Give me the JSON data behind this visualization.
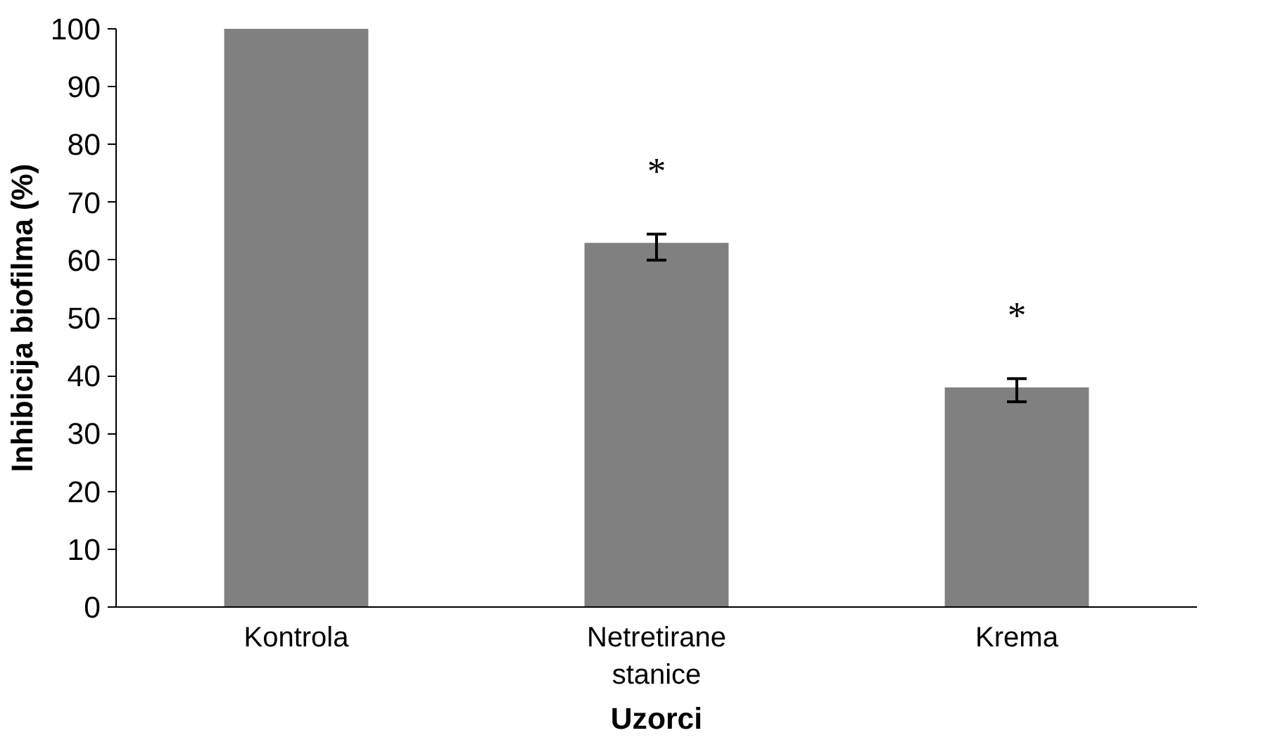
{
  "chart_data": {
    "type": "bar",
    "xlabel": "Uzorci",
    "ylabel": "Inhibicija biofilma (%)",
    "categories": [
      "Kontrola",
      "Netretirane\nstanice",
      "Krema"
    ],
    "values": [
      100,
      63,
      38
    ],
    "color": "#808080",
    "errors": [
      null,
      [
        60,
        64.5
      ],
      [
        35.5,
        39.5
      ]
    ],
    "annotations": [
      "*",
      "*"
    ],
    "ylim": [
      0,
      100
    ],
    "yticks": [
      0,
      10,
      20,
      30,
      40,
      50,
      60,
      70,
      80,
      90,
      100
    ],
    "grid": false
  }
}
